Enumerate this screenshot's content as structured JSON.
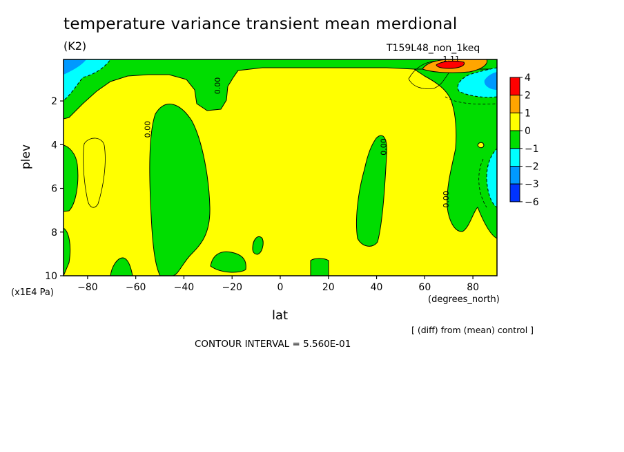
{
  "chart_data": {
    "type": "heatmap",
    "title": "temperature variance transient mean merdional",
    "units_label": "(K2)",
    "run_label": "T159L48_non_1keq",
    "xlabel": "lat",
    "x_units": "(degrees_north)",
    "ylabel": "plev",
    "y_units": "(x1E4 Pa)",
    "xlim": [
      -90,
      90
    ],
    "ylim": [
      10,
      0.1
    ],
    "x_ticks": [
      -80,
      -60,
      -40,
      -20,
      0,
      20,
      40,
      60,
      80
    ],
    "x_tick_labels": [
      "−80",
      "−60",
      "−40",
      "−20",
      "0",
      "20",
      "40",
      "60",
      "80"
    ],
    "y_ticks": [
      2,
      4,
      6,
      8,
      10
    ],
    "contour_labels": [
      {
        "text": "0.00",
        "lat": -25,
        "plev": 1.3
      },
      {
        "text": "0.00",
        "lat": -54,
        "plev": 3.3
      },
      {
        "text": "0.00",
        "lat": 44,
        "plev": 4.1
      },
      {
        "text": "0.00",
        "lat": 70,
        "plev": 6.5
      },
      {
        "text": "1.11",
        "lat": 71,
        "plev": 0.2
      }
    ],
    "colorbar": {
      "levels": [
        "4",
        "2",
        "1",
        "0",
        "−1",
        "−2",
        "−3",
        "−6"
      ],
      "colors": [
        "#ff0000",
        "#ffa500",
        "#ffff00",
        "#00dd00",
        "#00ffff",
        "#0099ff",
        "#0033ff"
      ]
    },
    "diff_note": "[ (diff) from (mean) control ]",
    "contour_interval": "CONTOUR INTERVAL = 5.560E-01"
  }
}
